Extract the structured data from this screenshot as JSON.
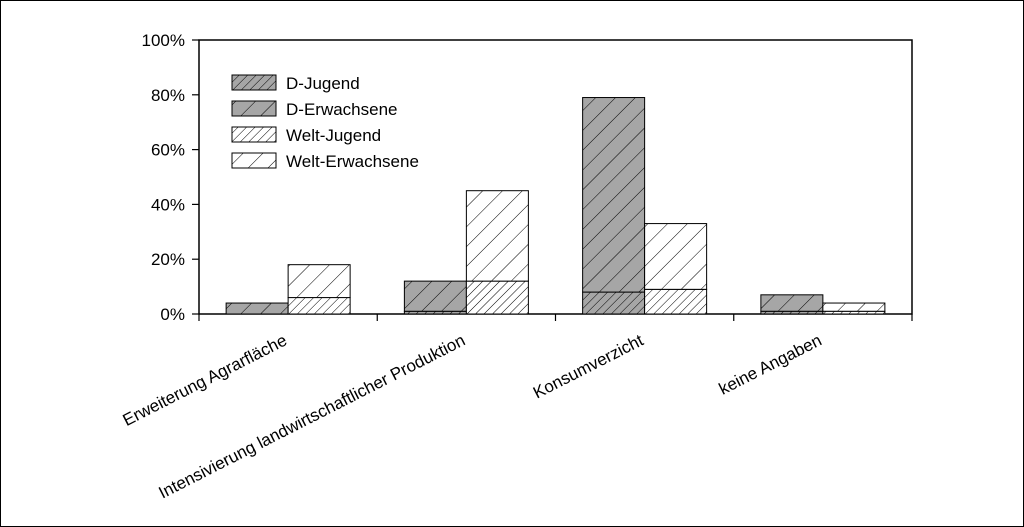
{
  "chart_data": {
    "type": "bar",
    "stacked": true,
    "categories": [
      "Erweiterung Agrarfläche",
      "Intensivierung landwirtschaftlicher Produktion",
      "Konsumverzicht",
      "keine Angaben"
    ],
    "groups": [
      "D",
      "Welt"
    ],
    "series": [
      {
        "name": "D-Jugend",
        "group": "D",
        "values": [
          0,
          1,
          8,
          1
        ],
        "color": "#a6a6a6",
        "pattern": "dense-hatch"
      },
      {
        "name": "D-Erwachsene",
        "group": "D",
        "values": [
          4,
          11,
          71,
          6
        ],
        "color": "#a6a6a6",
        "pattern": "hatch"
      },
      {
        "name": "Welt-Jugend",
        "group": "Welt",
        "values": [
          6,
          12,
          9,
          1
        ],
        "color": "#ffffff",
        "pattern": "dense-hatch"
      },
      {
        "name": "Welt-Erwachsene",
        "group": "Welt",
        "values": [
          12,
          33,
          24,
          3
        ],
        "color": "#ffffff",
        "pattern": "hatch"
      }
    ],
    "ylim": [
      0,
      100
    ],
    "yticks": [
      "0%",
      "20%",
      "40%",
      "60%",
      "80%",
      "100%"
    ],
    "ytick_values": [
      0,
      20,
      40,
      60,
      80,
      100
    ],
    "legend_position": "top-left",
    "grid": false,
    "xlabel": "",
    "ylabel": ""
  }
}
